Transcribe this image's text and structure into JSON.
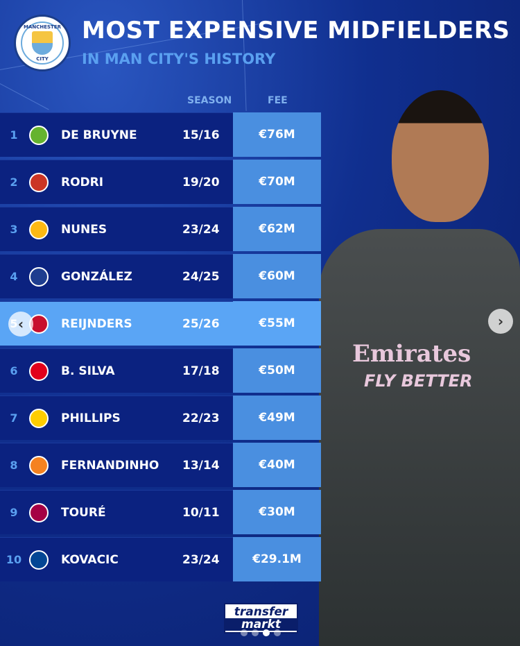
{
  "header": {
    "title": "MOST EXPENSIVE MIDFIELDERS",
    "subtitle": "IN MAN CITY'S HISTORY",
    "club_logo": {
      "top": "MANCHESTER",
      "bottom": "CITY"
    }
  },
  "columns": {
    "season": "SEASON",
    "fee": "FEE"
  },
  "rows": [
    {
      "rank": "1",
      "name": "DE BRUYNE",
      "season": "15/16",
      "fee": "€76M",
      "crest_color": "#65b32e"
    },
    {
      "rank": "2",
      "name": "RODRI",
      "season": "19/20",
      "fee": "€70M",
      "crest_color": "#cb3524"
    },
    {
      "rank": "3",
      "name": "NUNES",
      "season": "23/24",
      "fee": "€62M",
      "crest_color": "#fdb913"
    },
    {
      "rank": "4",
      "name": "GONZÁLEZ",
      "season": "24/25",
      "fee": "€60M",
      "crest_color": "#1e3d8f"
    },
    {
      "rank": "5",
      "name": "REIJNDERS",
      "season": "25/26",
      "fee": "€55M",
      "crest_color": "#c8102e",
      "highlighted": true
    },
    {
      "rank": "6",
      "name": "B. SILVA",
      "season": "17/18",
      "fee": "€50M",
      "crest_color": "#e2001a"
    },
    {
      "rank": "7",
      "name": "PHILLIPS",
      "season": "22/23",
      "fee": "€49M",
      "crest_color": "#ffcd00"
    },
    {
      "rank": "8",
      "name": "FERNANDINHO",
      "season": "13/14",
      "fee": "€40M",
      "crest_color": "#f58220"
    },
    {
      "rank": "9",
      "name": "TOURÉ",
      "season": "10/11",
      "fee": "€30M",
      "crest_color": "#a50044"
    },
    {
      "rank": "10",
      "name": "KOVACIC",
      "season": "23/24",
      "fee": "€29.1M",
      "crest_color": "#034694"
    }
  ],
  "player_image": {
    "sponsor": "Emirates",
    "slogan": "FLY BETTER"
  },
  "brand": {
    "line1": "transfer",
    "line2": "markt"
  },
  "carousel": {
    "prev_icon": "chevron-left-icon",
    "next_icon": "chevron-right-icon",
    "slides": 4,
    "active": 3
  },
  "colors": {
    "row": "#0b2280",
    "fee": "#4a8fe0",
    "highlight": "#5aa5f5",
    "accent": "#5aa0f0"
  }
}
